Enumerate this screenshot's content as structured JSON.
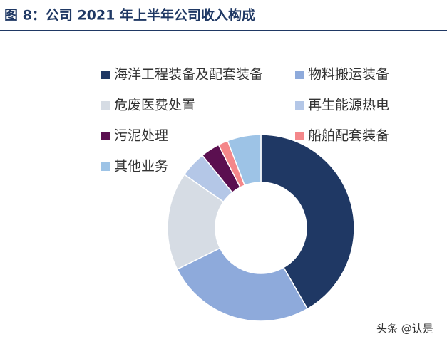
{
  "chart_data": {
    "type": "donut",
    "title": "图 8：公司 2021 年上半年公司收入构成",
    "categories": [
      "海洋工程装备及配套装备",
      "物料搬运装备",
      "危废医费处置",
      "再生能源热电",
      "污泥处理",
      "船舶配套装备",
      "其他业务"
    ],
    "values": [
      41.7,
      26,
      17,
      4.5,
      3.3,
      1.7,
      5.8
    ],
    "colors": [
      "#1f3864",
      "#8eaadb",
      "#d6dce4",
      "#b4c7e7",
      "#5b0f50",
      "#f4878a",
      "#9dc3e6"
    ]
  },
  "watermark": "头条 @认是"
}
